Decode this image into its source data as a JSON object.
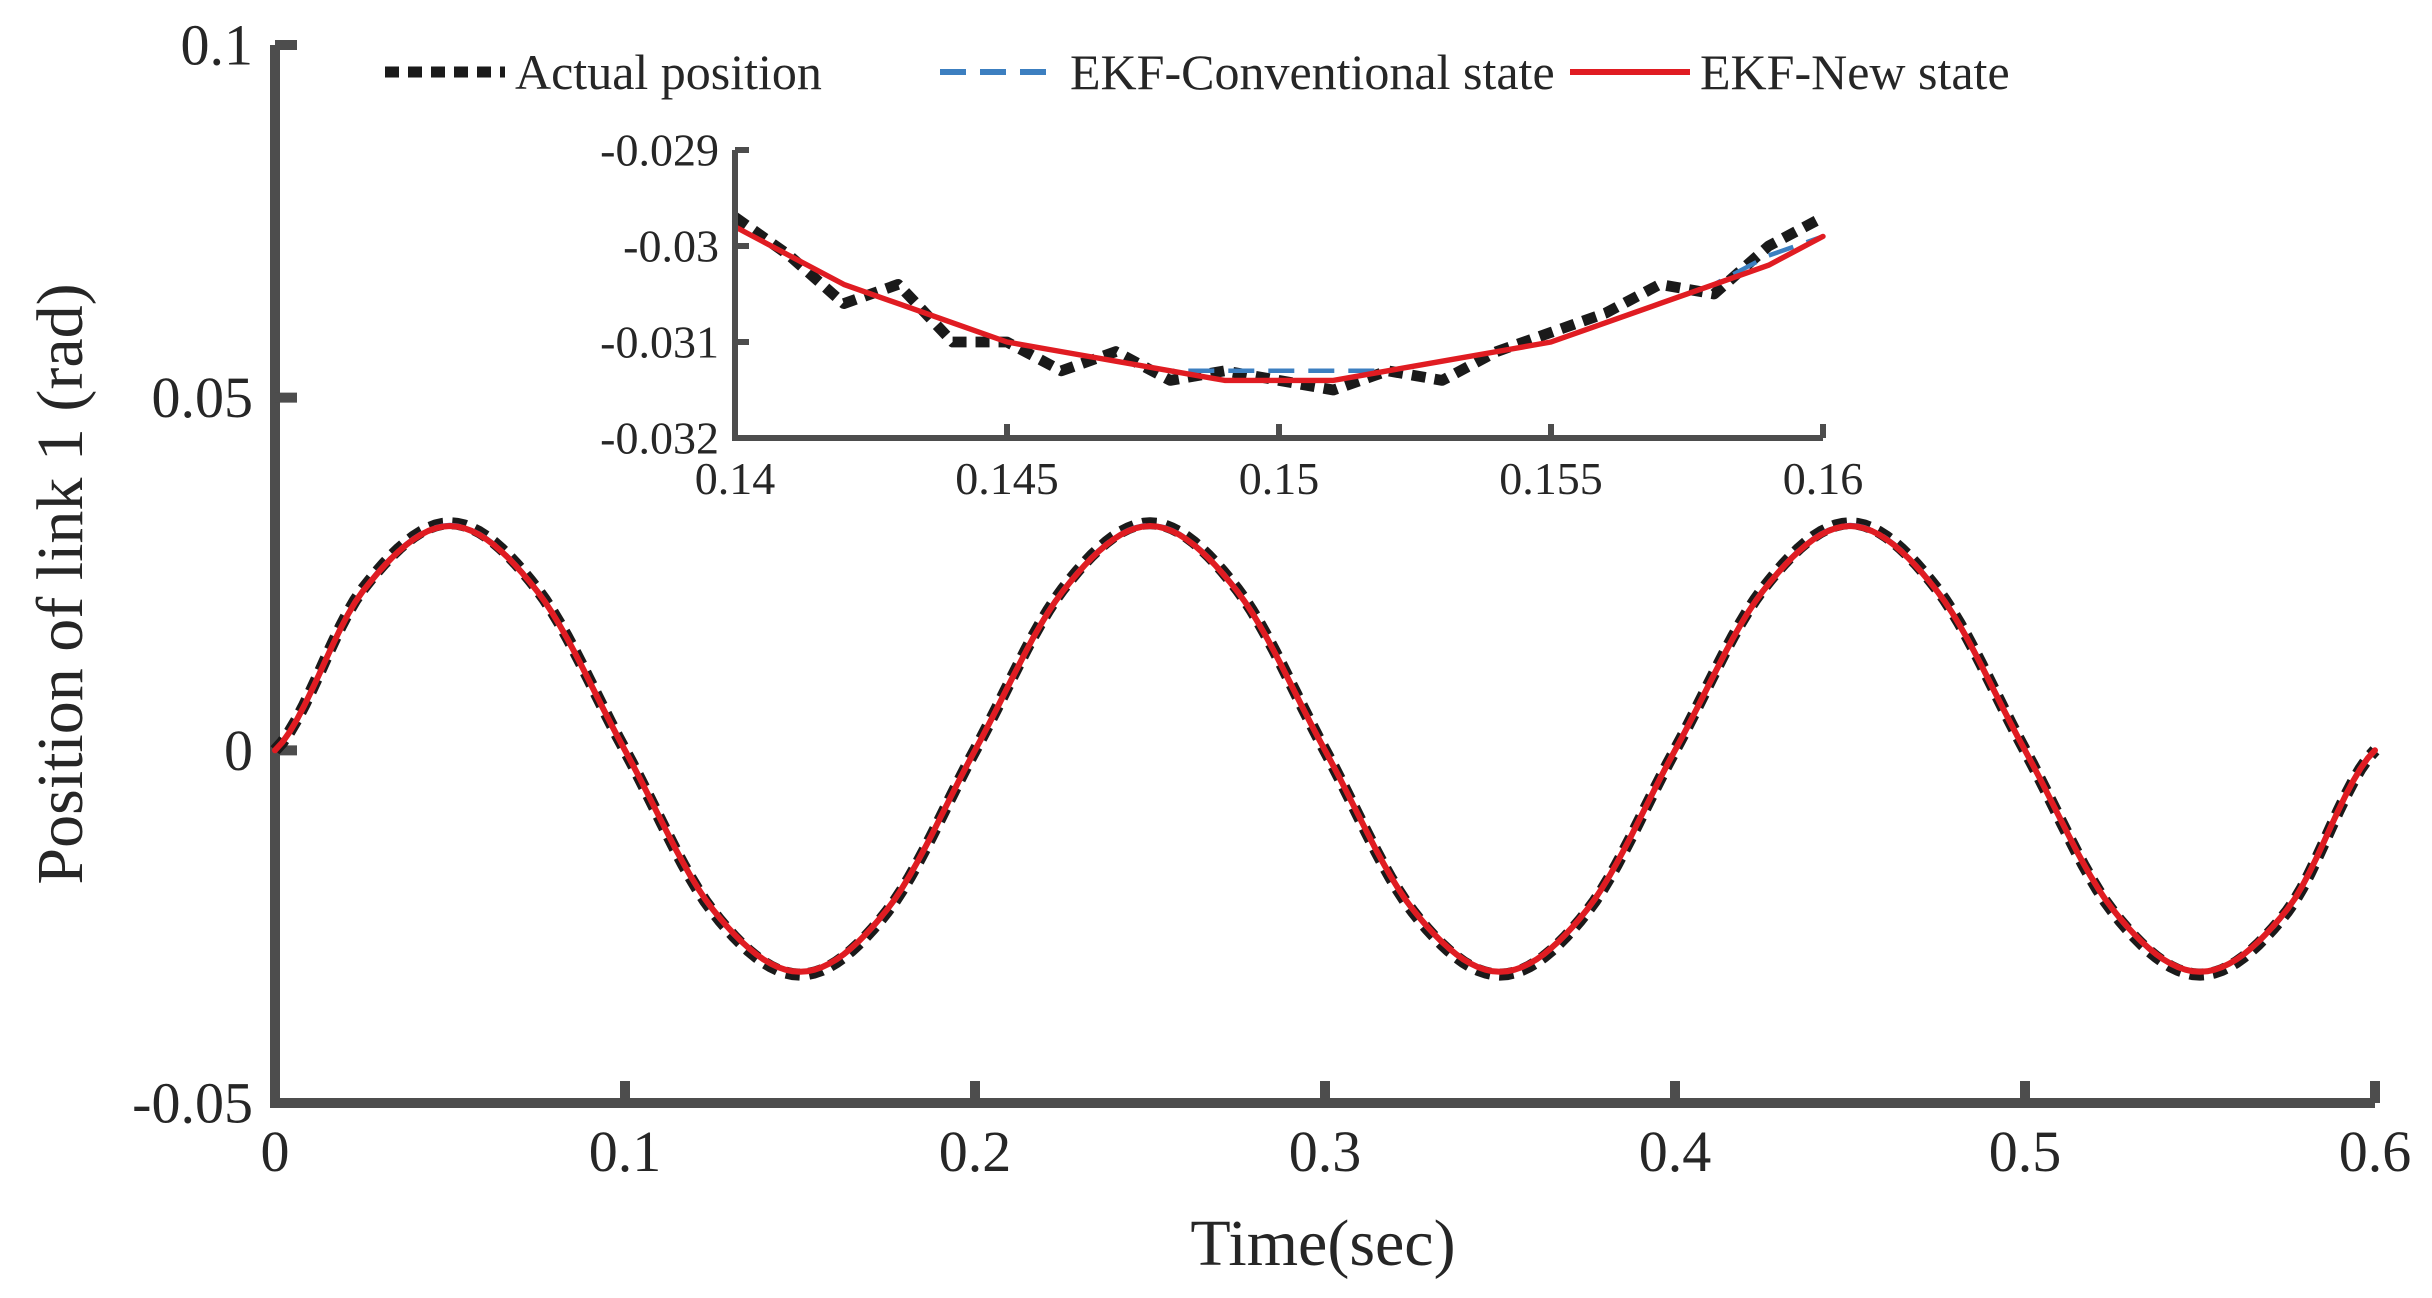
{
  "chart_data": [
    {
      "id": "main",
      "type": "line",
      "title": "",
      "xlabel": "Time(sec)",
      "ylabel": "Position of link 1 (rad)",
      "xlim": [
        0,
        0.6
      ],
      "ylim": [
        -0.05,
        0.1
      ],
      "xticks": [
        0,
        0.1,
        0.2,
        0.3,
        0.4,
        0.5,
        0.6
      ],
      "xtick_labels": [
        "0",
        "0.1",
        "0.2",
        "0.3",
        "0.4",
        "0.5",
        "0.6"
      ],
      "yticks": [
        -0.05,
        0,
        0.05,
        0.1
      ],
      "ytick_labels": [
        "-0.05",
        "0",
        "0.05",
        "0.1"
      ],
      "grid": false,
      "legend": "top",
      "series": [
        {
          "name": "Actual position",
          "color": "#1a1a1a",
          "style": "dotted",
          "x": [
            0,
            0.025,
            0.05,
            0.075,
            0.1,
            0.125,
            0.15,
            0.175,
            0.2,
            0.225,
            0.25,
            0.275,
            0.3,
            0.325,
            0.35,
            0.375,
            0.4,
            0.425,
            0.45,
            0.475,
            0.5,
            0.525,
            0.55,
            0.575,
            0.6
          ],
          "y": [
            0,
            0.0228,
            0.0322,
            0.0228,
            0,
            -0.0228,
            -0.0318,
            -0.0228,
            0,
            0.0228,
            0.0322,
            0.0228,
            0,
            -0.0228,
            -0.0318,
            -0.0228,
            0,
            0.0228,
            0.0322,
            0.0228,
            0,
            -0.0228,
            -0.0318,
            -0.0228,
            0
          ]
        },
        {
          "name": "EKF-Conventional state",
          "color": "#3c7fc0",
          "style": "dashed",
          "x": [
            0,
            0.025,
            0.05,
            0.075,
            0.1,
            0.125,
            0.15,
            0.175,
            0.2,
            0.225,
            0.25,
            0.275,
            0.3,
            0.325,
            0.35,
            0.375,
            0.4,
            0.425,
            0.45,
            0.475,
            0.5,
            0.525,
            0.55,
            0.575,
            0.6
          ],
          "y": [
            0,
            0.0226,
            0.0319,
            0.0226,
            0,
            -0.0226,
            -0.0314,
            -0.0226,
            0,
            0.0226,
            0.0319,
            0.0226,
            0,
            -0.0226,
            -0.0314,
            -0.0226,
            0,
            0.0226,
            0.0319,
            0.0226,
            0,
            -0.0226,
            -0.0314,
            -0.0226,
            0
          ]
        },
        {
          "name": "EKF-New state",
          "color": "#e01c22",
          "style": "solid",
          "x": [
            0,
            0.025,
            0.05,
            0.075,
            0.1,
            0.125,
            0.15,
            0.175,
            0.2,
            0.225,
            0.25,
            0.275,
            0.3,
            0.325,
            0.35,
            0.375,
            0.4,
            0.425,
            0.45,
            0.475,
            0.5,
            0.525,
            0.55,
            0.575,
            0.6
          ],
          "y": [
            0,
            0.0225,
            0.0318,
            0.0225,
            0,
            -0.0225,
            -0.0314,
            -0.0225,
            0,
            0.0225,
            0.0318,
            0.0225,
            0,
            -0.0225,
            -0.0314,
            -0.0225,
            0,
            0.0225,
            0.0318,
            0.0225,
            0,
            -0.0225,
            -0.0314,
            -0.0225,
            0
          ]
        }
      ]
    },
    {
      "id": "inset",
      "type": "line",
      "title": "",
      "xlabel": "",
      "ylabel": "",
      "xlim": [
        0.14,
        0.16
      ],
      "ylim": [
        -0.032,
        -0.029
      ],
      "xticks": [
        0.14,
        0.145,
        0.15,
        0.155,
        0.16
      ],
      "xtick_labels": [
        "0.14",
        "0.145",
        "0.15",
        "0.155",
        "0.16"
      ],
      "yticks": [
        -0.032,
        -0.031,
        -0.03,
        -0.029
      ],
      "ytick_labels": [
        "-0.032",
        "-0.031",
        "-0.03",
        "-0.029"
      ],
      "grid": false,
      "series": [
        {
          "name": "Actual position",
          "color": "#1a1a1a",
          "style": "dotted",
          "x": [
            0.14,
            0.141,
            0.142,
            0.143,
            0.144,
            0.145,
            0.146,
            0.147,
            0.148,
            0.149,
            0.15,
            0.151,
            0.152,
            0.153,
            0.154,
            0.155,
            0.156,
            0.157,
            0.158,
            0.159,
            0.16
          ],
          "y": [
            -0.0297,
            -0.0301,
            -0.0306,
            -0.0304,
            -0.031,
            -0.031,
            -0.0313,
            -0.0311,
            -0.0314,
            -0.0313,
            -0.0314,
            -0.0315,
            -0.0313,
            -0.0314,
            -0.0311,
            -0.0309,
            -0.0307,
            -0.0304,
            -0.0305,
            -0.03,
            -0.0297
          ]
        },
        {
          "name": "EKF-Conventional state",
          "color": "#3c7fc0",
          "style": "dashed",
          "x": [
            0.14,
            0.141,
            0.142,
            0.143,
            0.144,
            0.145,
            0.146,
            0.147,
            0.148,
            0.149,
            0.15,
            0.151,
            0.152,
            0.153,
            0.154,
            0.155,
            0.156,
            0.157,
            0.158,
            0.159,
            0.16
          ],
          "y": [
            -0.0298,
            -0.0301,
            -0.0304,
            -0.0306,
            -0.0308,
            -0.031,
            -0.0311,
            -0.0312,
            -0.0313,
            -0.0313,
            -0.0313,
            -0.0313,
            -0.0313,
            -0.0312,
            -0.0311,
            -0.031,
            -0.0308,
            -0.0306,
            -0.0304,
            -0.0301,
            -0.0299
          ]
        },
        {
          "name": "EKF-New state",
          "color": "#e01c22",
          "style": "solid",
          "x": [
            0.14,
            0.141,
            0.142,
            0.143,
            0.144,
            0.145,
            0.146,
            0.147,
            0.148,
            0.149,
            0.15,
            0.151,
            0.152,
            0.153,
            0.154,
            0.155,
            0.156,
            0.157,
            0.158,
            0.159,
            0.16
          ],
          "y": [
            -0.0298,
            -0.0301,
            -0.0304,
            -0.0306,
            -0.0308,
            -0.031,
            -0.0311,
            -0.0312,
            -0.0313,
            -0.0314,
            -0.0314,
            -0.0314,
            -0.0313,
            -0.0312,
            -0.0311,
            -0.031,
            -0.0308,
            -0.0306,
            -0.0304,
            -0.0302,
            -0.0299
          ]
        }
      ]
    }
  ],
  "colors": {
    "axis": "#4d4d4d",
    "text": "#262626"
  }
}
